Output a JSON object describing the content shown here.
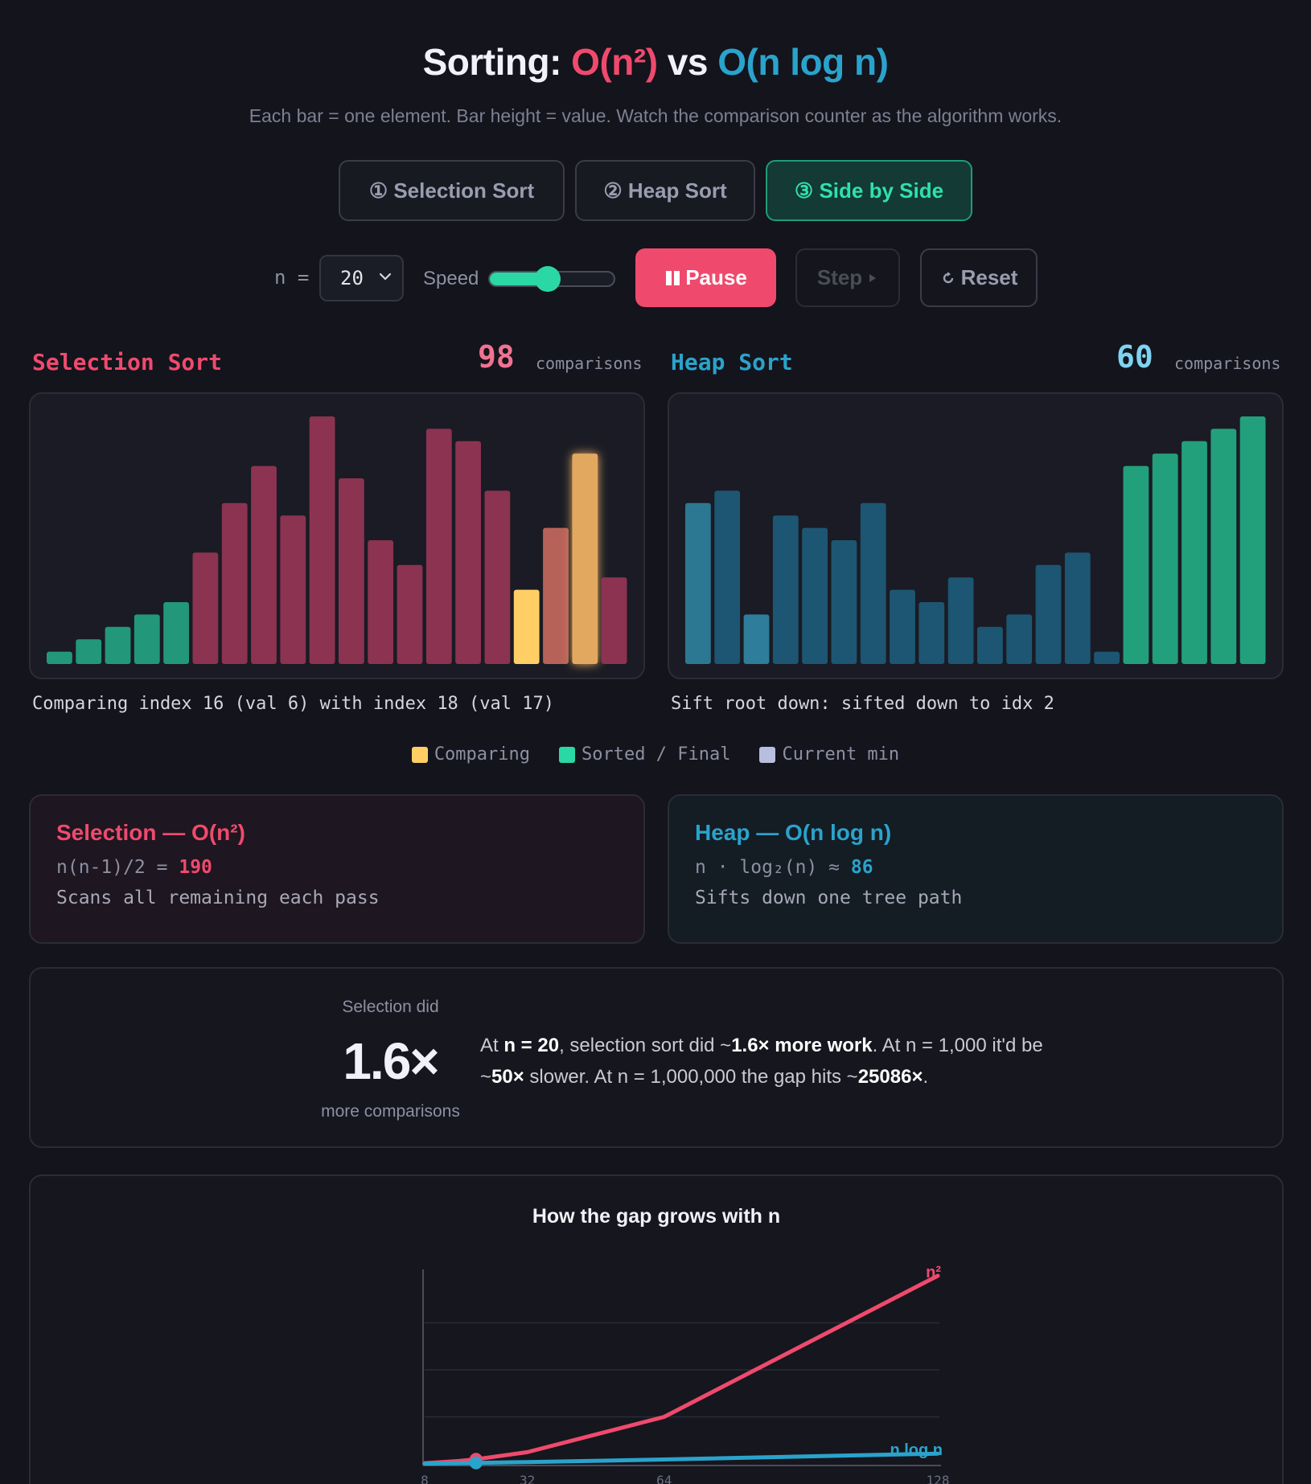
{
  "header": {
    "title_prefix": "Sorting:",
    "title_on2": "O(n²)",
    "title_vs": "vs",
    "title_onlogn": "O(n log n)",
    "subtitle": "Each bar = one element. Bar height = value. Watch the comparison counter as the algorithm works."
  },
  "tabs": [
    {
      "label": "① Selection Sort",
      "active": false
    },
    {
      "label": "② Heap Sort",
      "active": false
    },
    {
      "label": "③ Side by Side",
      "active": true
    }
  ],
  "controls": {
    "n_label": "n =",
    "n_value": "20",
    "speed_label": "Speed",
    "speed_fraction": 0.4,
    "pause_label": "Pause",
    "step_label": "Step",
    "reset_label": "Reset"
  },
  "selection": {
    "name": "Selection Sort",
    "comparisons": "98",
    "comparisons_label": "comparisons",
    "status": "Comparing index 16 (val 6) with index 18 (val 17)",
    "values": [
      1,
      2,
      3,
      4,
      5,
      9,
      13,
      16,
      12,
      20,
      15,
      10,
      8,
      19,
      18,
      14,
      6,
      11,
      17,
      7
    ],
    "states": [
      "sorted",
      "sorted",
      "sorted",
      "sorted",
      "sorted",
      "unsorted",
      "unsorted",
      "unsorted",
      "unsorted",
      "unsorted",
      "unsorted",
      "unsorted",
      "unsorted",
      "unsorted",
      "unsorted",
      "unsorted",
      "comparing",
      "min",
      "comparing",
      "unsorted"
    ],
    "info_title": "Selection — O(n²)",
    "info_formula": "n(n-1)/2 =",
    "info_value": "190",
    "info_desc": "Scans all remaining each pass"
  },
  "heap": {
    "name": "Heap Sort",
    "comparisons": "60",
    "comparisons_label": "comparisons",
    "status": "Sift root down: sifted down to idx 2",
    "values": [
      13,
      14,
      4,
      12,
      11,
      10,
      13,
      6,
      5,
      7,
      3,
      4,
      8,
      9,
      1,
      16,
      17,
      18,
      19,
      20
    ],
    "states": [
      "root",
      "heap",
      "child",
      "heap",
      "heap",
      "heap",
      "heap",
      "heap",
      "heap",
      "heap",
      "heap",
      "heap",
      "heap",
      "heap",
      "heap",
      "sorted",
      "sorted",
      "sorted",
      "sorted",
      "sorted"
    ],
    "info_title": "Heap — O(n log n)",
    "info_formula": "n · log₂(n) ≈",
    "info_value": "86",
    "info_desc": "Sifts down one tree path"
  },
  "legend": [
    {
      "label": "Comparing",
      "color": "#ffcf66"
    },
    {
      "label": "Sorted / Final",
      "color": "#2ad8a6"
    },
    {
      "label": "Current min",
      "color": "#b9bde0"
    }
  ],
  "colors": {
    "sel_unsorted": "#8b3350",
    "sel_sorted": "#23977a",
    "comparing": "#ffcf66",
    "comparing_orange": "#e3a85e",
    "current_min": "#b76259",
    "heap_bar": "#1d5672",
    "heap_root": "#2c7893",
    "heap_child": "#2e7d9a",
    "heap_sorted": "#22a07c",
    "accent_red": "#ef4a6d",
    "accent_blue": "#2aa3cc"
  },
  "ratio": {
    "top_label": "Selection did",
    "big": "1.6×",
    "bottom_label": "more comparisons",
    "d1": "At ",
    "d2": "n = 20",
    "d3": ", selection sort did ~",
    "d4": "1.6× more work",
    "d5": ". At n = 1,000 it'd be ~",
    "d6": "50×",
    "d7": " slower. At n = 1,000,000 the gap hits ~",
    "d8": "25086×",
    "d9": "."
  },
  "growth": {
    "title": "How the gap grows with n",
    "label_n2": "n²",
    "label_nlogn": "n log n"
  },
  "chart_data": {
    "type": "line",
    "title": "How the gap grows with n",
    "x": [
      8,
      16,
      20,
      32,
      64,
      128
    ],
    "x_ticks": [
      "8",
      "32",
      "64",
      "128"
    ],
    "series": [
      {
        "name": "n²",
        "values": [
          64,
          256,
          400,
          1024,
          4096,
          16384
        ]
      },
      {
        "name": "n log n",
        "values": [
          24,
          64,
          86,
          160,
          384,
          896
        ]
      }
    ],
    "current_n": 20,
    "xlim": [
      8,
      128
    ],
    "ylim": [
      0,
      16384
    ],
    "grid": true
  }
}
